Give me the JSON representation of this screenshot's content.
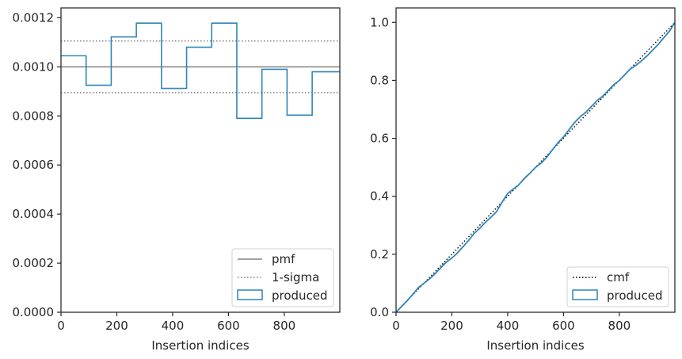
{
  "chart_data": [
    {
      "type": "line",
      "xlabel": "Insertion indices",
      "ylabel": "",
      "xlim": [
        0,
        999
      ],
      "ylim": [
        0,
        0.00124
      ],
      "xticks": [
        0,
        200,
        400,
        600,
        800
      ],
      "xtick_labels": [
        "0",
        "200",
        "400",
        "600",
        "800"
      ],
      "yticks": [
        0,
        0.0002,
        0.0004,
        0.0006,
        0.0008,
        0.001,
        0.0012
      ],
      "ytick_labels": [
        "0.0000",
        "0.0002",
        "0.0004",
        "0.0006",
        "0.0008",
        "0.0010",
        "0.0012"
      ],
      "legend_position": "lower-right",
      "series": [
        {
          "name": "pmf",
          "kind": "hline",
          "y": 0.001,
          "style": "solid",
          "color": "#808080"
        },
        {
          "name": "1-sigma",
          "kind": "hlines",
          "y": [
            0.001105,
            0.000895
          ],
          "style": "dotted",
          "color": "#808080"
        },
        {
          "name": "produced",
          "kind": "step-histogram",
          "color": "#2e86b8",
          "bin_edges": [
            0,
            90,
            180,
            270,
            360,
            450,
            540,
            630,
            720,
            810,
            900,
            999
          ],
          "values": [
            0.001045,
            0.000925,
            0.001122,
            0.001178,
            0.000912,
            0.00108,
            0.001178,
            0.00079,
            0.00099,
            0.000803,
            0.00098
          ]
        }
      ]
    },
    {
      "type": "line",
      "xlabel": "Insertion indices",
      "ylabel": "",
      "xlim": [
        0,
        999
      ],
      "ylim": [
        0,
        1.05
      ],
      "xticks": [
        0,
        200,
        400,
        600,
        800
      ],
      "xtick_labels": [
        "0",
        "200",
        "400",
        "600",
        "800"
      ],
      "yticks": [
        0,
        0.2,
        0.4,
        0.6,
        0.8,
        1.0
      ],
      "ytick_labels": [
        "0.0",
        "0.2",
        "0.4",
        "0.6",
        "0.8",
        "1.0"
      ],
      "legend_position": "lower-right",
      "series": [
        {
          "name": "cmf",
          "kind": "line",
          "style": "dotted",
          "color": "#000000",
          "x": [
            0,
            999
          ],
          "y": [
            0,
            1.0
          ]
        },
        {
          "name": "produced",
          "kind": "line",
          "style": "solid",
          "color": "#2e86b8",
          "x": [
            0,
            20,
            40,
            60,
            80,
            100,
            120,
            140,
            160,
            180,
            200,
            220,
            240,
            260,
            280,
            300,
            320,
            340,
            360,
            380,
            400,
            420,
            440,
            460,
            480,
            500,
            520,
            540,
            560,
            580,
            600,
            620,
            640,
            660,
            680,
            700,
            720,
            740,
            760,
            780,
            800,
            820,
            840,
            860,
            880,
            900,
            920,
            940,
            960,
            980,
            999
          ],
          "y": [
            0,
            0.02,
            0.04,
            0.062,
            0.085,
            0.1,
            0.115,
            0.133,
            0.153,
            0.173,
            0.187,
            0.205,
            0.226,
            0.248,
            0.272,
            0.29,
            0.31,
            0.328,
            0.347,
            0.38,
            0.41,
            0.425,
            0.44,
            0.462,
            0.48,
            0.5,
            0.515,
            0.535,
            0.56,
            0.585,
            0.605,
            0.63,
            0.655,
            0.675,
            0.69,
            0.71,
            0.73,
            0.745,
            0.765,
            0.785,
            0.8,
            0.82,
            0.84,
            0.852,
            0.868,
            0.885,
            0.905,
            0.925,
            0.948,
            0.97,
            1.0
          ]
        }
      ]
    }
  ]
}
